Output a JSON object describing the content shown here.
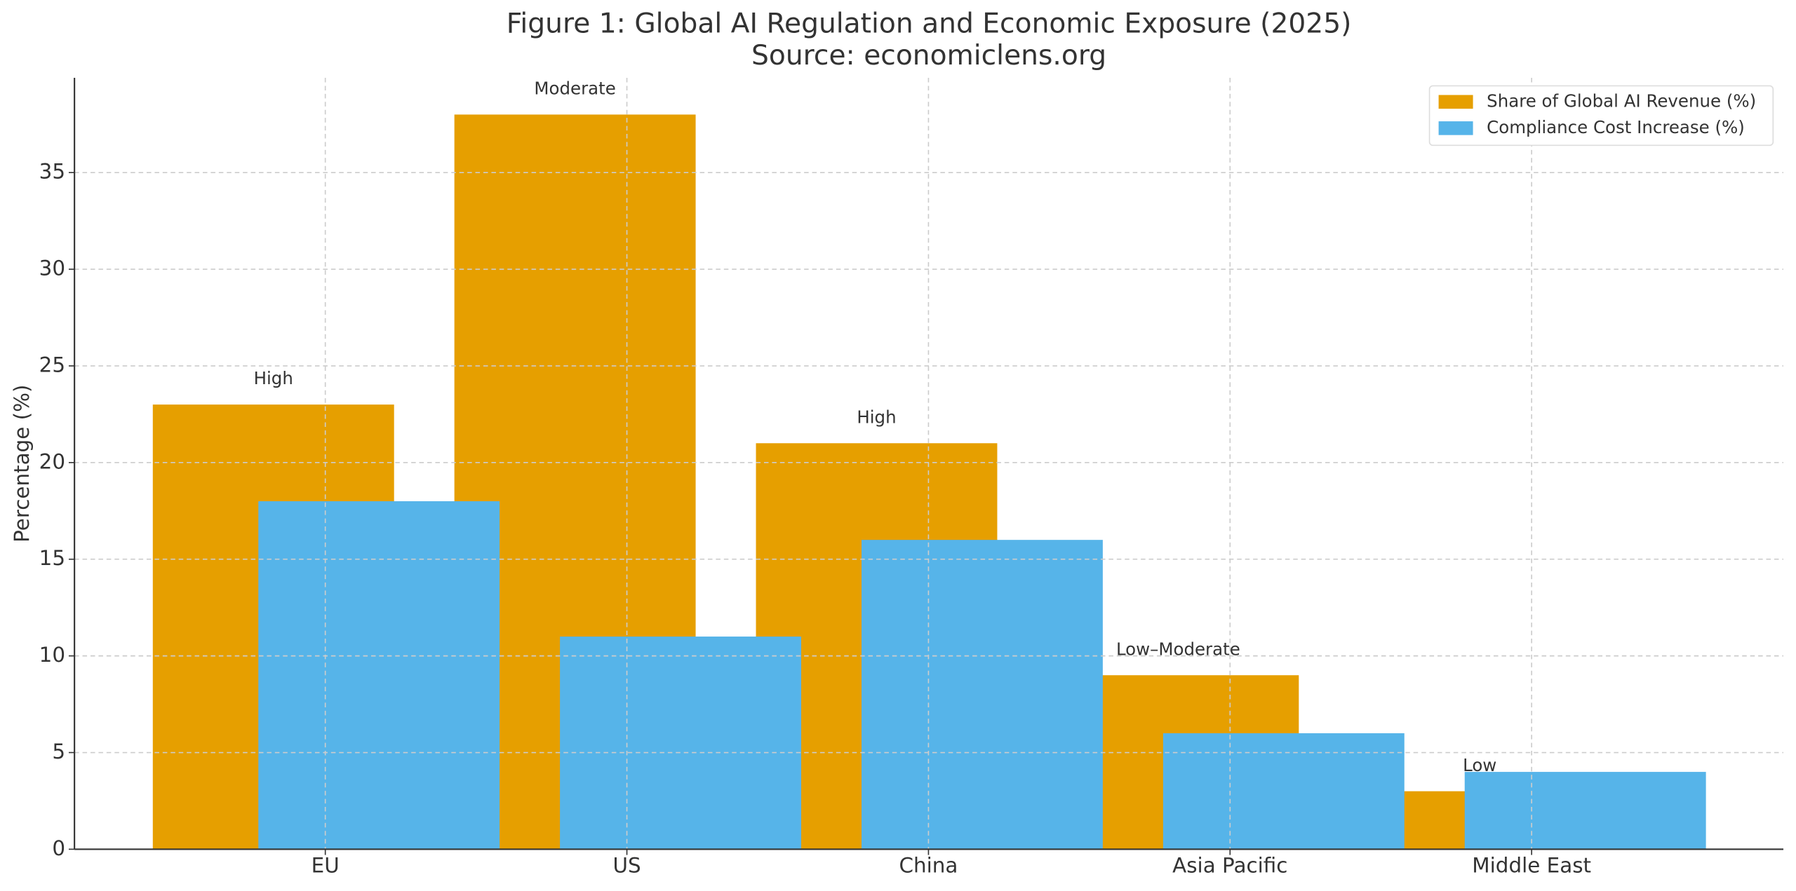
{
  "chart_data": {
    "type": "bar",
    "title": "Figure 1: Global AI Regulation and Economic Exposure (2025)",
    "subtitle": "Source: economiclens.org",
    "y_label": "Percentage (%)",
    "categories": [
      "EU",
      "US",
      "China",
      "Asia Pacific",
      "Middle East"
    ],
    "series": [
      {
        "name": "Share of Global AI Revenue (%)",
        "color": "#E69F00",
        "values": [
          23,
          38,
          21,
          9,
          3
        ]
      },
      {
        "name": "Compliance Cost Increase (%)",
        "color": "#56B4E9",
        "values": [
          18,
          11,
          16,
          6,
          4
        ]
      }
    ],
    "annotations": [
      "High",
      "Moderate",
      "High",
      "Low–Moderate",
      "Low"
    ],
    "ylim": [
      0,
      39.9
    ],
    "yticks": [
      0,
      5,
      10,
      15,
      20,
      25,
      30,
      35
    ],
    "grid": true,
    "legend": "upper right"
  }
}
